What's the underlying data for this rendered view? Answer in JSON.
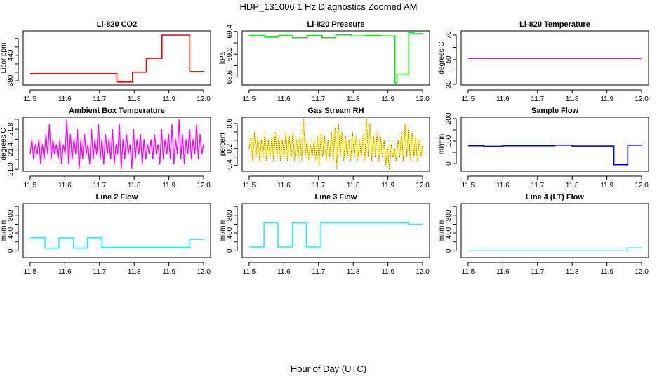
{
  "title": "HDP_131006  1 Hz Diagnostics Zoomed AM",
  "xlabel": "Hour of Day (UTC)",
  "chart_data": [
    {
      "type": "line",
      "title": "Li-820 CO2",
      "ylabel": "Licor ppm",
      "color": "#ff0000",
      "xlim": [
        11.48,
        12.02
      ],
      "ylim": [
        370,
        498
      ],
      "xticks": [
        11.5,
        11.6,
        11.7,
        11.8,
        11.9,
        12.0
      ],
      "xtick_labels": [
        "11.5",
        "11.6",
        "11.7",
        "11.8",
        "11.9",
        "12.0"
      ],
      "yticks": [
        380,
        400,
        420,
        440,
        460,
        480
      ],
      "ytick_labels": [
        "380",
        "",
        "",
        "440",
        "",
        ""
      ],
      "steps": [
        [
          11.5,
          397
        ],
        [
          11.75,
          377
        ],
        [
          11.795,
          400.5
        ],
        [
          11.835,
          433
        ],
        [
          11.88,
          488
        ],
        [
          11.96,
          402
        ],
        [
          12.0,
          402
        ]
      ]
    },
    {
      "type": "line",
      "title": "Li-820 Pressure",
      "ylabel": "kPa",
      "color": "#00ee00",
      "xlim": [
        11.48,
        12.02
      ],
      "ylim": [
        68.46,
        69.41
      ],
      "xticks": [
        11.5,
        11.6,
        11.7,
        11.8,
        11.9,
        12.0
      ],
      "xtick_labels": [
        "11.5",
        "11.6",
        "11.7",
        "11.8",
        "11.9",
        "12.0"
      ],
      "yticks": [
        68.6,
        68.8,
        69.0,
        69.2,
        69.4
      ],
      "ytick_labels": [
        "68.6",
        "",
        "69.0",
        "",
        "69.4"
      ],
      "steps": [
        [
          11.5,
          69.33
        ],
        [
          11.545,
          69.3
        ],
        [
          11.585,
          69.33
        ],
        [
          11.625,
          69.29
        ],
        [
          11.668,
          69.33
        ],
        [
          11.71,
          69.29
        ],
        [
          11.75,
          69.34
        ],
        [
          11.795,
          69.32
        ],
        [
          11.835,
          69.33
        ],
        [
          11.88,
          69.32
        ],
        [
          11.92,
          68.5
        ],
        [
          11.926,
          68.65
        ],
        [
          11.96,
          69.38
        ],
        [
          11.975,
          69.36
        ],
        [
          12.0,
          69.36
        ]
      ]
    },
    {
      "type": "line",
      "title": "Li-820 Temperature",
      "ylabel": "degrees C",
      "color": "#ff00ff",
      "xlim": [
        11.48,
        12.02
      ],
      "ylim": [
        29.4,
        73.4
      ],
      "xticks": [
        11.5,
        11.6,
        11.7,
        11.8,
        11.9,
        12.0
      ],
      "xtick_labels": [
        "11.5",
        "11.6",
        "11.7",
        "11.8",
        "11.9",
        "12.0"
      ],
      "yticks": [
        30,
        40,
        50,
        60,
        70
      ],
      "ytick_labels": [
        "30",
        "",
        "50",
        "",
        "70"
      ],
      "steps": [
        [
          11.5,
          51
        ],
        [
          12.0,
          51
        ]
      ]
    },
    {
      "type": "line",
      "title": "Ambient Box Temperature",
      "ylabel": "degrees C",
      "color": "#ff00ff",
      "xlim": [
        11.48,
        12.02
      ],
      "ylim": [
        20.96,
        22.04
      ],
      "xticks": [
        11.5,
        11.6,
        11.7,
        11.8,
        11.9,
        12.0
      ],
      "xtick_labels": [
        "11.5",
        "11.6",
        "11.7",
        "11.8",
        "11.9",
        "12.0"
      ],
      "yticks": [
        21.0,
        21.2,
        21.4,
        21.6,
        21.8,
        22.0
      ],
      "ytick_labels": [
        "21.0",
        "",
        "21.4",
        "",
        "21.8",
        ""
      ],
      "values": [
        21.3,
        21.6,
        21.2,
        21.5,
        21.3,
        21.6,
        21.1,
        21.5,
        21.2,
        21.7,
        21.3,
        21.9,
        21.2,
        21.6,
        21.3,
        21.5,
        21.2,
        21.6,
        21.1,
        21.5,
        21.3,
        22.0,
        21.1,
        21.7,
        21.2,
        21.6,
        21.3,
        21.8,
        21.0,
        21.6,
        21.2,
        21.7,
        21.3,
        21.5,
        21.1,
        21.8,
        21.2,
        21.6,
        21.3,
        21.9,
        21.2,
        21.6,
        21.1,
        21.7,
        21.3,
        21.6,
        21.2,
        21.8,
        21.1,
        21.5,
        21.3,
        21.9,
        21.0,
        21.6,
        21.2,
        21.7,
        21.3,
        21.5,
        21.0,
        21.8,
        21.2,
        21.6,
        21.3,
        21.7,
        21.1,
        21.6,
        21.2,
        21.5,
        21.3,
        21.6,
        21.2,
        21.7,
        21.3,
        21.5,
        21.1,
        21.8,
        21.2,
        21.6,
        21.3,
        21.7,
        21.2,
        21.9,
        21.1,
        21.6,
        21.3,
        22.0,
        21.2,
        21.7,
        21.1,
        21.6,
        21.3,
        21.8,
        21.2,
        21.6,
        21.3,
        21.9,
        21.2,
        21.7,
        21.3,
        21.5
      ]
    },
    {
      "type": "line",
      "title": "Gas Stream RH",
      "ylabel": "percent",
      "color": "#ffff00",
      "color2": "#ff0000",
      "xlim": [
        11.48,
        12.02
      ],
      "ylim": [
        -0.54,
        0.75
      ],
      "xticks": [
        11.5,
        11.6,
        11.7,
        11.8,
        11.9,
        12.0
      ],
      "xtick_labels": [
        "11.5",
        "11.6",
        "11.7",
        "11.8",
        "11.9",
        "12.0"
      ],
      "yticks": [
        -0.4,
        -0.2,
        0.0,
        0.2,
        0.4,
        0.6
      ],
      "ytick_labels": [
        "-0.4",
        "",
        "0.2",
        "",
        "",
        "0.6"
      ],
      "values": [
        0.0,
        0.3,
        -0.3,
        0.4,
        -0.2,
        0.3,
        -0.3,
        0.2,
        -0.2,
        0.4,
        -0.3,
        0.2,
        -0.2,
        0.3,
        -0.3,
        0.4,
        -0.2,
        0.3,
        -0.3,
        0.2,
        -0.2,
        0.4,
        -0.3,
        0.3,
        -0.2,
        0.4,
        -0.3,
        0.2,
        -0.2,
        0.3,
        -0.3,
        0.7,
        -0.2,
        0.2,
        -0.3,
        0.1,
        -0.2,
        0.2,
        -0.3,
        0.3,
        -0.4,
        0.4,
        -0.2,
        0.3,
        -0.3,
        0.2,
        -0.2,
        0.4,
        -0.3,
        0.5,
        -0.5,
        0.6,
        -0.2,
        0.4,
        -0.3,
        0.3,
        -0.2,
        0.2,
        -0.3,
        0.4,
        -0.2,
        0.3,
        -0.3,
        0.2,
        -0.2,
        0.3,
        -0.3,
        0.7,
        -0.2,
        0.6,
        -0.3,
        0.3,
        -0.2,
        0.4,
        -0.3,
        0.3,
        -0.2,
        0.2,
        -0.4,
        0.0,
        -0.5,
        0.1,
        -0.2,
        0.0,
        -0.3,
        0.2,
        -0.2,
        0.4,
        -0.3,
        0.6,
        -0.2,
        0.5,
        -0.3,
        0.4,
        -0.2,
        0.3,
        -0.3,
        0.2,
        -0.2,
        0.1
      ]
    },
    {
      "type": "line",
      "title": "Sample Flow",
      "ylabel": "ml/min",
      "color": "#0000ff",
      "xlim": [
        11.48,
        12.02
      ],
      "ylim": [
        -34,
        206
      ],
      "xticks": [
        11.5,
        11.6,
        11.7,
        11.8,
        11.9,
        12.0
      ],
      "xtick_labels": [
        "11.5",
        "11.6",
        "11.7",
        "11.8",
        "11.9",
        "12.0"
      ],
      "yticks": [
        0,
        50,
        100,
        150,
        200
      ],
      "ytick_labels": [
        "0",
        "",
        "100",
        "",
        "200"
      ],
      "steps": [
        [
          11.5,
          79
        ],
        [
          11.545,
          77
        ],
        [
          11.6,
          79
        ],
        [
          11.75,
          82
        ],
        [
          11.8,
          78
        ],
        [
          11.92,
          -5
        ],
        [
          11.96,
          82
        ],
        [
          12.0,
          82
        ]
      ]
    },
    {
      "type": "line",
      "title": "Line 2 Flow",
      "ylabel": "ml/min",
      "color": "#00ffff",
      "xlim": [
        11.48,
        12.02
      ],
      "ylim": [
        -153,
        1067
      ],
      "xticks": [
        11.5,
        11.6,
        11.7,
        11.8,
        11.9,
        12.0
      ],
      "xtick_labels": [
        "11.5",
        "11.6",
        "11.7",
        "11.8",
        "11.9",
        "12.0"
      ],
      "yticks": [
        0,
        200,
        400,
        600,
        800,
        1000
      ],
      "ytick_labels": [
        "0",
        "",
        "400",
        "",
        "800",
        ""
      ],
      "steps": [
        [
          11.5,
          300
        ],
        [
          11.543,
          60
        ],
        [
          11.583,
          290
        ],
        [
          11.625,
          60
        ],
        [
          11.665,
          300
        ],
        [
          11.707,
          75
        ],
        [
          11.96,
          255
        ],
        [
          12.0,
          255
        ]
      ]
    },
    {
      "type": "line",
      "title": "Line 3 Flow",
      "ylabel": "ml/min",
      "color": "#00ffff",
      "xlim": [
        11.48,
        12.02
      ],
      "ylim": [
        -153,
        1067
      ],
      "xticks": [
        11.5,
        11.6,
        11.7,
        11.8,
        11.9,
        12.0
      ],
      "xtick_labels": [
        "11.5",
        "11.6",
        "11.7",
        "11.8",
        "11.9",
        "12.0"
      ],
      "yticks": [
        0,
        200,
        400,
        600,
        800,
        1000
      ],
      "ytick_labels": [
        "0",
        "",
        "400",
        "",
        "800",
        ""
      ],
      "steps": [
        [
          11.5,
          85
        ],
        [
          11.543,
          630
        ],
        [
          11.583,
          85
        ],
        [
          11.625,
          630
        ],
        [
          11.665,
          85
        ],
        [
          11.707,
          630
        ],
        [
          11.96,
          600
        ],
        [
          12.0,
          600
        ]
      ]
    },
    {
      "type": "line",
      "title": "Line 4 (LT) Flow",
      "ylabel": "ml/min",
      "color": "#7fe8f0",
      "xlim": [
        11.48,
        12.02
      ],
      "ylim": [
        -153,
        1067
      ],
      "xticks": [
        11.5,
        11.6,
        11.7,
        11.8,
        11.9,
        12.0
      ],
      "xtick_labels": [
        "11.5",
        "11.6",
        "11.7",
        "11.8",
        "11.9",
        "12.0"
      ],
      "yticks": [
        0,
        200,
        400,
        600,
        800,
        1000
      ],
      "ytick_labels": [
        "0",
        "",
        "400",
        "",
        "800",
        ""
      ],
      "steps": [
        [
          11.5,
          0
        ],
        [
          11.958,
          70
        ],
        [
          12.0,
          70
        ]
      ]
    }
  ]
}
